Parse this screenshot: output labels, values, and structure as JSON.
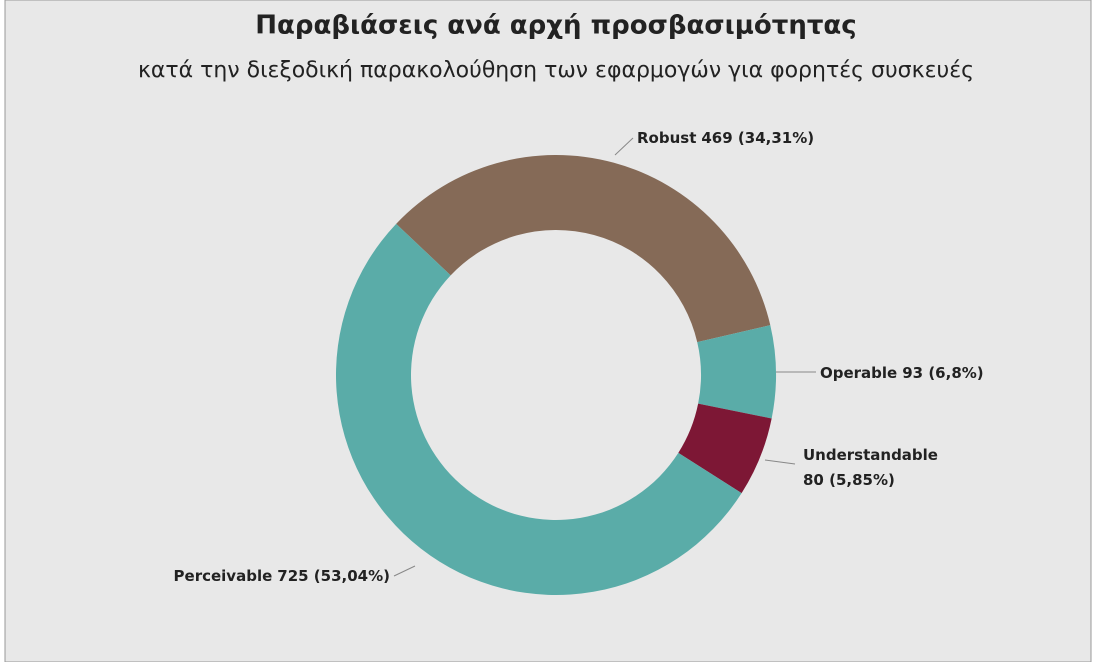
{
  "chart_data": {
    "type": "donut",
    "title": "Παραβιάσεις ανά αρχή προσβασιμότητας",
    "subtitle": "κατά την διεξοδική παρακολούθηση των εφαρμογών για φορητές συσκευές",
    "categories": [
      "Robust",
      "Operable",
      "Understandable",
      "Perceivable"
    ],
    "values": [
      469,
      93,
      80,
      725
    ],
    "value_labels": [
      "469 (34,31%)",
      "93 (6,8%)",
      "80 (5,85%)",
      "725 (53,04%)"
    ],
    "colors": [
      "#856a57",
      "#5aaca8",
      "#7d1735",
      "#5aaca8"
    ]
  }
}
